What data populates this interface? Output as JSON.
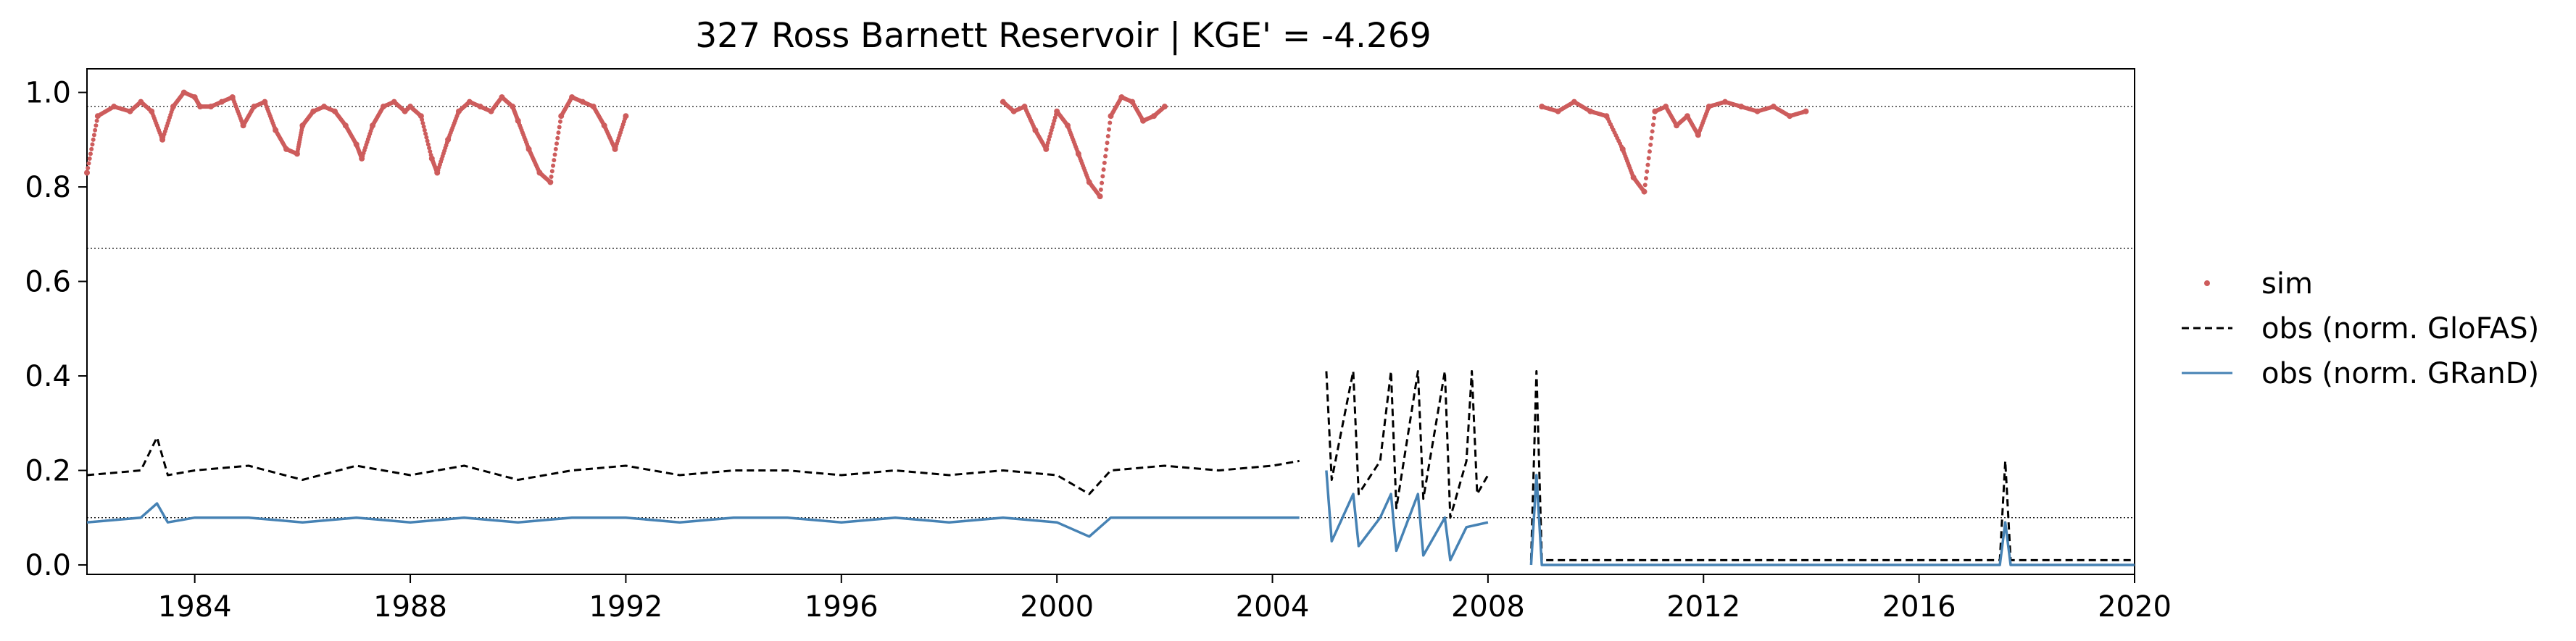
{
  "chart_data": {
    "type": "line",
    "title": "327  Ross Barnett Reservoir | KGE' = -4.269",
    "xlabel": "",
    "ylabel": "",
    "xlim": [
      1982.0,
      2020.0
    ],
    "ylim": [
      -0.02,
      1.05
    ],
    "x_ticks": [
      1984,
      1988,
      1992,
      1996,
      2000,
      2004,
      2008,
      2012,
      2016,
      2020
    ],
    "y_ticks": [
      0.0,
      0.2,
      0.4,
      0.6,
      0.8,
      1.0
    ],
    "reference_lines": [
      0.97,
      0.67,
      0.1
    ],
    "grid": false,
    "legend_position": "right",
    "colors": {
      "sim": "#cd5c5c",
      "glofas": "#000000",
      "grand": "#4682b4"
    },
    "series": [
      {
        "name": "sim",
        "style": "points",
        "segments": [
          [
            [
              1982.0,
              0.83
            ],
            [
              1982.2,
              0.95
            ],
            [
              1982.5,
              0.97
            ],
            [
              1982.8,
              0.96
            ],
            [
              1983.0,
              0.98
            ],
            [
              1983.2,
              0.96
            ],
            [
              1983.4,
              0.9
            ],
            [
              1983.6,
              0.97
            ],
            [
              1983.8,
              1.0
            ],
            [
              1984.0,
              0.99
            ],
            [
              1984.1,
              0.97
            ],
            [
              1984.3,
              0.97
            ],
            [
              1984.5,
              0.98
            ],
            [
              1984.7,
              0.99
            ],
            [
              1984.9,
              0.93
            ],
            [
              1985.1,
              0.97
            ],
            [
              1985.3,
              0.98
            ],
            [
              1985.5,
              0.92
            ],
            [
              1985.7,
              0.88
            ],
            [
              1985.9,
              0.87
            ],
            [
              1986.0,
              0.93
            ],
            [
              1986.2,
              0.96
            ],
            [
              1986.4,
              0.97
            ],
            [
              1986.6,
              0.96
            ],
            [
              1986.8,
              0.93
            ],
            [
              1987.0,
              0.89
            ],
            [
              1987.1,
              0.86
            ],
            [
              1987.3,
              0.93
            ],
            [
              1987.5,
              0.97
            ],
            [
              1987.7,
              0.98
            ],
            [
              1987.9,
              0.96
            ],
            [
              1988.0,
              0.97
            ],
            [
              1988.2,
              0.95
            ],
            [
              1988.4,
              0.86
            ],
            [
              1988.5,
              0.83
            ],
            [
              1988.7,
              0.9
            ],
            [
              1988.9,
              0.96
            ],
            [
              1989.1,
              0.98
            ],
            [
              1989.3,
              0.97
            ],
            [
              1989.5,
              0.96
            ],
            [
              1989.7,
              0.99
            ],
            [
              1989.9,
              0.97
            ],
            [
              1990.0,
              0.94
            ],
            [
              1990.2,
              0.88
            ],
            [
              1990.4,
              0.83
            ],
            [
              1990.6,
              0.81
            ],
            [
              1990.8,
              0.95
            ],
            [
              1991.0,
              0.99
            ],
            [
              1991.2,
              0.98
            ],
            [
              1991.4,
              0.97
            ],
            [
              1991.6,
              0.93
            ],
            [
              1991.8,
              0.88
            ],
            [
              1992.0,
              0.95
            ]
          ],
          [
            [
              1999.0,
              0.98
            ],
            [
              1999.2,
              0.96
            ],
            [
              1999.4,
              0.97
            ],
            [
              1999.6,
              0.92
            ],
            [
              1999.8,
              0.88
            ],
            [
              2000.0,
              0.96
            ],
            [
              2000.2,
              0.93
            ],
            [
              2000.4,
              0.87
            ],
            [
              2000.6,
              0.81
            ],
            [
              2000.8,
              0.78
            ],
            [
              2001.0,
              0.95
            ],
            [
              2001.2,
              0.99
            ],
            [
              2001.4,
              0.98
            ],
            [
              2001.6,
              0.94
            ],
            [
              2001.8,
              0.95
            ],
            [
              2002.0,
              0.97
            ]
          ],
          [
            [
              2009.0,
              0.97
            ],
            [
              2009.3,
              0.96
            ],
            [
              2009.6,
              0.98
            ],
            [
              2009.9,
              0.96
            ],
            [
              2010.2,
              0.95
            ],
            [
              2010.5,
              0.88
            ],
            [
              2010.7,
              0.82
            ],
            [
              2010.9,
              0.79
            ],
            [
              2011.1,
              0.96
            ],
            [
              2011.3,
              0.97
            ],
            [
              2011.5,
              0.93
            ],
            [
              2011.7,
              0.95
            ],
            [
              2011.9,
              0.91
            ],
            [
              2012.1,
              0.97
            ],
            [
              2012.4,
              0.98
            ],
            [
              2012.7,
              0.97
            ],
            [
              2013.0,
              0.96
            ],
            [
              2013.3,
              0.97
            ],
            [
              2013.6,
              0.95
            ],
            [
              2013.9,
              0.96
            ]
          ]
        ]
      },
      {
        "name": "obs (norm. GloFAS)",
        "style": "dashed",
        "segments": [
          [
            [
              1982.0,
              0.19
            ],
            [
              1983.0,
              0.2
            ],
            [
              1983.3,
              0.27
            ],
            [
              1983.5,
              0.19
            ],
            [
              1984.0,
              0.2
            ],
            [
              1985.0,
              0.21
            ],
            [
              1986.0,
              0.18
            ],
            [
              1987.0,
              0.21
            ],
            [
              1988.0,
              0.19
            ],
            [
              1989.0,
              0.21
            ],
            [
              1990.0,
              0.18
            ],
            [
              1991.0,
              0.2
            ],
            [
              1992.0,
              0.21
            ],
            [
              1993.0,
              0.19
            ],
            [
              1994.0,
              0.2
            ],
            [
              1995.0,
              0.2
            ],
            [
              1996.0,
              0.19
            ],
            [
              1997.0,
              0.2
            ],
            [
              1998.0,
              0.19
            ],
            [
              1999.0,
              0.2
            ],
            [
              2000.0,
              0.19
            ],
            [
              2000.6,
              0.15
            ],
            [
              2001.0,
              0.2
            ],
            [
              2002.0,
              0.21
            ],
            [
              2003.0,
              0.2
            ],
            [
              2004.0,
              0.21
            ],
            [
              2004.5,
              0.22
            ]
          ],
          [
            [
              2005.0,
              0.41
            ],
            [
              2005.1,
              0.18
            ],
            [
              2005.5,
              0.41
            ],
            [
              2005.6,
              0.15
            ],
            [
              2006.0,
              0.22
            ],
            [
              2006.2,
              0.41
            ],
            [
              2006.3,
              0.12
            ],
            [
              2006.7,
              0.41
            ],
            [
              2006.8,
              0.14
            ],
            [
              2007.2,
              0.41
            ],
            [
              2007.3,
              0.1
            ],
            [
              2007.6,
              0.22
            ],
            [
              2007.7,
              0.41
            ],
            [
              2007.8,
              0.15
            ],
            [
              2008.0,
              0.19
            ]
          ],
          [
            [
              2008.8,
              0.01
            ],
            [
              2008.9,
              0.41
            ],
            [
              2009.0,
              0.01
            ],
            [
              2012.0,
              0.01
            ],
            [
              2016.0,
              0.01
            ],
            [
              2017.5,
              0.01
            ],
            [
              2017.6,
              0.22
            ],
            [
              2017.7,
              0.01
            ],
            [
              2020.0,
              0.01
            ]
          ]
        ]
      },
      {
        "name": "obs (norm. GRanD)",
        "style": "solid",
        "segments": [
          [
            [
              1982.0,
              0.09
            ],
            [
              1983.0,
              0.1
            ],
            [
              1983.3,
              0.13
            ],
            [
              1983.5,
              0.09
            ],
            [
              1984.0,
              0.1
            ],
            [
              1985.0,
              0.1
            ],
            [
              1986.0,
              0.09
            ],
            [
              1987.0,
              0.1
            ],
            [
              1988.0,
              0.09
            ],
            [
              1989.0,
              0.1
            ],
            [
              1990.0,
              0.09
            ],
            [
              1991.0,
              0.1
            ],
            [
              1992.0,
              0.1
            ],
            [
              1993.0,
              0.09
            ],
            [
              1994.0,
              0.1
            ],
            [
              1995.0,
              0.1
            ],
            [
              1996.0,
              0.09
            ],
            [
              1997.0,
              0.1
            ],
            [
              1998.0,
              0.09
            ],
            [
              1999.0,
              0.1
            ],
            [
              2000.0,
              0.09
            ],
            [
              2000.6,
              0.06
            ],
            [
              2001.0,
              0.1
            ],
            [
              2002.0,
              0.1
            ],
            [
              2003.0,
              0.1
            ],
            [
              2004.0,
              0.1
            ],
            [
              2004.5,
              0.1
            ]
          ],
          [
            [
              2005.0,
              0.2
            ],
            [
              2005.1,
              0.05
            ],
            [
              2005.5,
              0.15
            ],
            [
              2005.6,
              0.04
            ],
            [
              2006.0,
              0.1
            ],
            [
              2006.2,
              0.15
            ],
            [
              2006.3,
              0.03
            ],
            [
              2006.7,
              0.15
            ],
            [
              2006.8,
              0.02
            ],
            [
              2007.2,
              0.1
            ],
            [
              2007.3,
              0.01
            ],
            [
              2007.6,
              0.08
            ],
            [
              2008.0,
              0.09
            ]
          ],
          [
            [
              2008.8,
              0.0
            ],
            [
              2008.9,
              0.19
            ],
            [
              2009.0,
              0.0
            ],
            [
              2012.0,
              0.0
            ],
            [
              2016.0,
              0.0
            ],
            [
              2017.5,
              0.0
            ],
            [
              2017.6,
              0.09
            ],
            [
              2017.7,
              0.0
            ],
            [
              2020.0,
              0.0
            ]
          ]
        ]
      }
    ]
  }
}
